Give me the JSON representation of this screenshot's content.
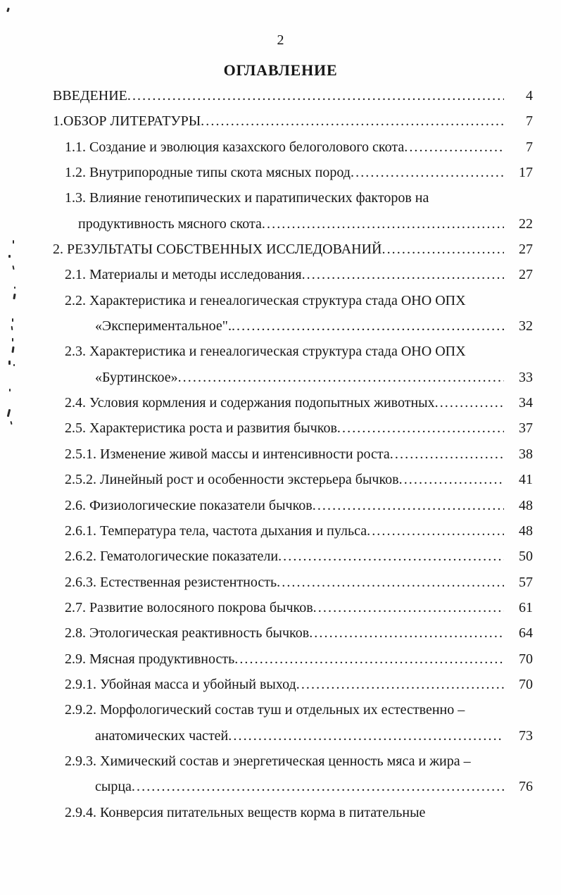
{
  "page": {
    "header_page_number": "2",
    "title": "ОГЛАВЛЕНИЕ"
  },
  "toc": {
    "rows": [
      {
        "text": "ВВЕДЕНИЕ ",
        "page": "4",
        "indent": 1,
        "leader": true
      },
      {
        "text": "1.ОБЗОР ЛИТЕРАТУРЫ",
        "page": "7",
        "indent": 1,
        "leader": true
      },
      {
        "text": "1.1. Создание и эволюция казахского белоголового скота",
        "page": "7",
        "indent": 2,
        "leader": true
      },
      {
        "text": "1.2. Внутрипородные типы скота мясных пород",
        "page": "17",
        "indent": 2,
        "leader": true
      },
      {
        "text": "1.3. Влияние генотипических и паратипических факторов на",
        "page": "",
        "indent": 2,
        "leader": false
      },
      {
        "text": "продуктивность  мясного скота",
        "page": "22",
        "indent": 3,
        "leader": true
      },
      {
        "text": "2. РЕЗУЛЬТАТЫ СОБСТВЕННЫХ ИССЛЕДОВАНИЙ",
        "page": "27",
        "indent": 1,
        "leader": true
      },
      {
        "text": "2.1. Материалы и методы исследования",
        "page": "27",
        "indent": 2,
        "leader": true
      },
      {
        "text": "2.2. Характеристика  и  генеалогическая структура стада ОНО ОПХ",
        "page": "",
        "indent": 2,
        "leader": false
      },
      {
        "text": "«Экспериментальное\". ",
        "page": "32",
        "indent": 4,
        "leader": true
      },
      {
        "text": "2.3. Характеристика  и  генеалогическая структура стада ОНО ОПХ",
        "page": "",
        "indent": 2,
        "leader": false
      },
      {
        "text": "«Буртинское»",
        "page": "33",
        "indent": 4,
        "leader": true
      },
      {
        "text": "2.4. Условия кормления и содержания подопытных животных",
        "page": "34",
        "indent": 2,
        "leader": true
      },
      {
        "text": "2.5. Характеристика роста и развития бычков ",
        "page": "37",
        "indent": 2,
        "leader": true
      },
      {
        "text": "2.5.1. Изменение живой массы и интенсивности роста",
        "page": "38",
        "indent": 2,
        "leader": true
      },
      {
        "text": "2.5.2. Линейный рост и особенности экстерьера бычков",
        "page": "41",
        "indent": 2,
        "leader": true
      },
      {
        "text": "2.6. Физиологические показатели бычков",
        "page": "48",
        "indent": 2,
        "leader": true
      },
      {
        "text": "2.6.1. Температура тела, частота дыхания и пульса",
        "page": "48",
        "indent": 2,
        "leader": true
      },
      {
        "text": "2.6.2. Гематологические показатели",
        "page": "50",
        "indent": 2,
        "leader": true
      },
      {
        "text": "2.6.3. Естественная резистентность ",
        "page": "57",
        "indent": 2,
        "leader": true
      },
      {
        "text": "2.7. Развитие волосяного покрова бычков",
        "page": "61",
        "indent": 2,
        "leader": true
      },
      {
        "text": "2.8. Этологическая реактивность бычков",
        "page": "64",
        "indent": 2,
        "leader": true
      },
      {
        "text": "2.9. Мясная продуктивность",
        "page": "70",
        "indent": 2,
        "leader": true
      },
      {
        "text": "2.9.1. Убойная масса и убойный выход ",
        "page": "70",
        "indent": 2,
        "leader": true
      },
      {
        "text": "2.9.2. Морфологический состав туш и  отдельных их естественно –",
        "page": "",
        "indent": 2,
        "leader": false
      },
      {
        "text": "анатомических частей",
        "page": "73",
        "indent": 4,
        "leader": true
      },
      {
        "text": "2.9.3. Химический состав и энергетическая ценность мяса и жира –",
        "page": "",
        "indent": 2,
        "leader": false
      },
      {
        "text": "сырца",
        "page": "76",
        "indent": 4,
        "leader": true
      },
      {
        "text": "2.9.4. Конверсия питательных веществ корма в питательные",
        "page": "",
        "indent": 2,
        "leader": false
      }
    ]
  }
}
